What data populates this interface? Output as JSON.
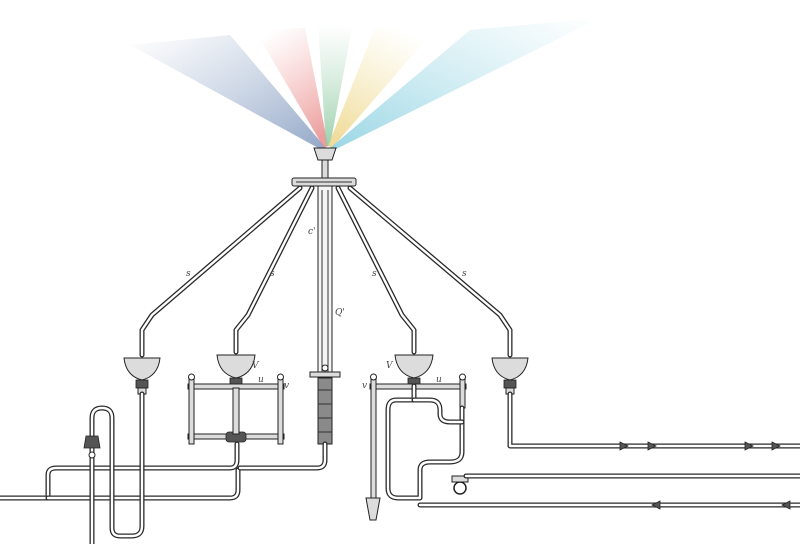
{
  "diagram": {
    "labels": {
      "s_1": "s",
      "s_2": "s",
      "s_3": "s",
      "s_4": "s",
      "c_prime": "c'",
      "q_prime": "Q'",
      "v_left": "V",
      "v_right": "V",
      "u_left": "u",
      "u_right": "u",
      "v_small_left": "v",
      "v_small_right": "v"
    },
    "colors": {
      "ray_blue": "#9fb3cf",
      "ray_red": "#f2a3a3",
      "ray_green": "#a9d6b8",
      "ray_yellow": "#f3e3a2",
      "ray_cyan": "#a8dde8",
      "ink": "#2a2a2a"
    }
  }
}
